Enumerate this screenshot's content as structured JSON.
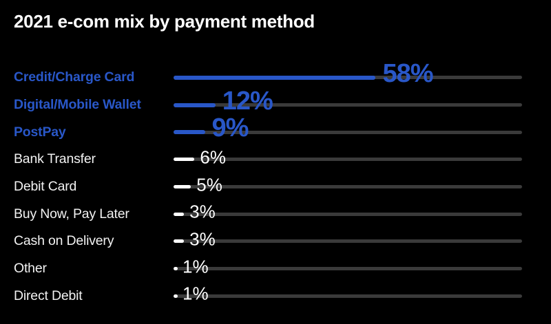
{
  "title": "2021 e-com mix by payment method",
  "colors": {
    "background": "#000000",
    "accent_blue": "#2957c8",
    "track_gray": "#3a3a3a",
    "text_white": "#ffffff"
  },
  "chart_data": {
    "type": "bar",
    "orientation": "horizontal",
    "title": "2021 e-com mix by payment method",
    "categories": [
      "Credit/Charge Card",
      "Digital/Mobile Wallet",
      "PostPay",
      "Bank Transfer",
      "Debit Card",
      "Buy Now, Pay Later",
      "Cash on Delivery",
      "Other",
      "Direct Debit"
    ],
    "values": [
      58,
      12,
      9,
      6,
      5,
      3,
      3,
      1,
      1
    ],
    "value_suffix": "%",
    "highlighted_indices": [
      0,
      1,
      2
    ],
    "xlim": [
      0,
      100
    ],
    "track_full_scale": 100,
    "grid": false,
    "legend": false,
    "style_notes": "full-width gray tracks behind bars; top 3 rows blue bold, rest white"
  }
}
